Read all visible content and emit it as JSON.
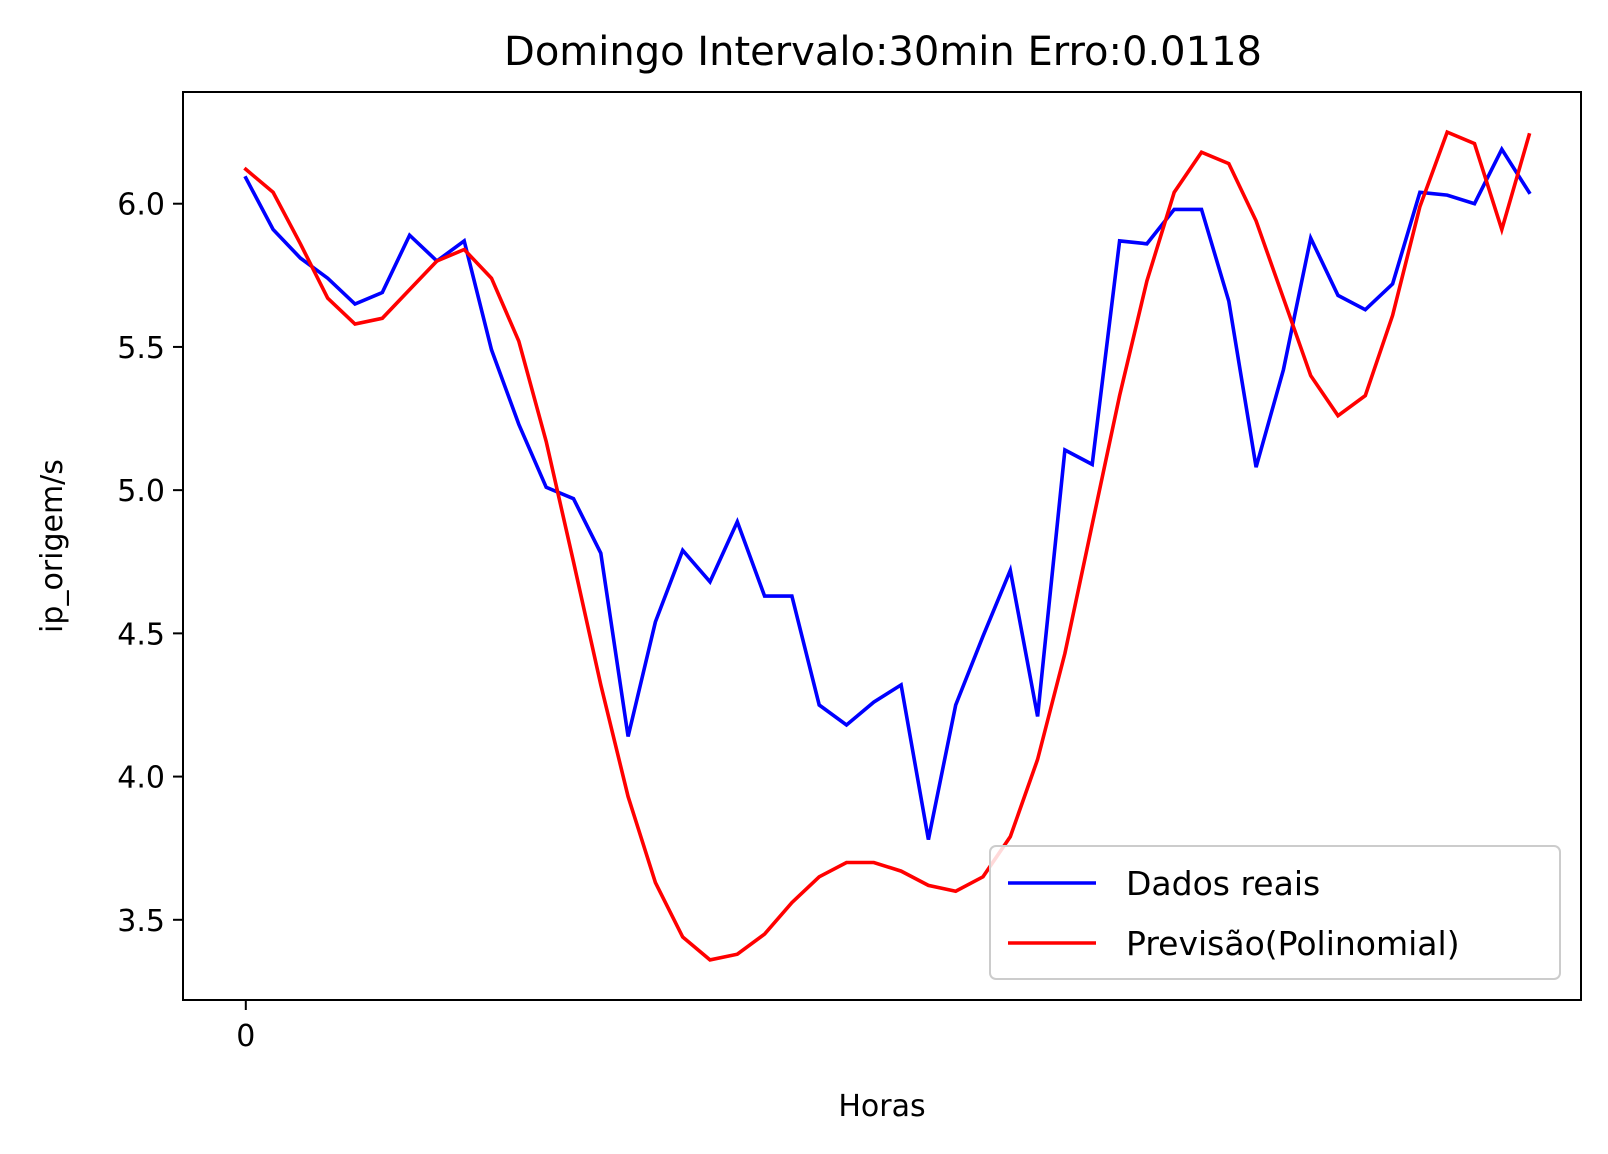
{
  "chart_data": {
    "type": "line",
    "title": "Domingo Intervalo:30min Erro:0.0118",
    "xlabel": "Horas",
    "ylabel": "ip_origem/s",
    "xlim": [
      -2.3,
      48.9
    ],
    "ylim": [
      3.22,
      6.39
    ],
    "xticks": [
      {
        "value": 0,
        "label": "0"
      }
    ],
    "yticks": [
      {
        "value": 3.5,
        "label": "3.5"
      },
      {
        "value": 4.0,
        "label": "4.0"
      },
      {
        "value": 4.5,
        "label": "4.5"
      },
      {
        "value": 5.0,
        "label": "5.0"
      },
      {
        "value": 5.5,
        "label": "5.5"
      },
      {
        "value": 6.0,
        "label": "6.0"
      }
    ],
    "grid": false,
    "legend_position": "lower-right",
    "x": [
      0,
      1,
      2,
      3,
      4,
      5,
      6,
      7,
      8,
      9,
      10,
      11,
      12,
      13,
      14,
      15,
      16,
      17,
      18,
      19,
      20,
      21,
      22,
      23,
      24,
      25,
      26,
      27,
      28,
      29,
      30,
      31,
      32,
      33,
      34,
      35,
      36,
      37,
      38,
      39,
      40,
      41,
      42,
      43,
      44,
      45,
      46,
      47
    ],
    "series": [
      {
        "name": "Dados reais",
        "color": "#0000ff",
        "values": [
          6.09,
          5.91,
          5.81,
          5.74,
          5.65,
          5.69,
          5.89,
          5.8,
          5.87,
          5.49,
          5.23,
          5.01,
          4.97,
          4.78,
          4.14,
          4.54,
          4.79,
          4.68,
          4.89,
          4.63,
          4.63,
          4.25,
          4.18,
          4.26,
          4.32,
          3.78,
          4.25,
          4.49,
          4.72,
          4.21,
          5.14,
          5.09,
          5.87,
          5.86,
          5.98,
          5.98,
          5.66,
          5.08,
          5.42,
          5.88,
          5.68,
          5.63,
          5.72,
          6.04,
          6.03,
          6.0,
          6.19,
          6.04
        ]
      },
      {
        "name": "Previsão(Polinomial)",
        "color": "#ff0000",
        "values": [
          6.12,
          6.04,
          5.86,
          5.67,
          5.58,
          5.6,
          5.7,
          5.8,
          5.84,
          5.74,
          5.52,
          5.17,
          4.75,
          4.32,
          3.93,
          3.63,
          3.44,
          3.36,
          3.38,
          3.45,
          3.56,
          3.65,
          3.7,
          3.7,
          3.67,
          3.62,
          3.6,
          3.65,
          3.79,
          4.06,
          4.43,
          4.88,
          5.33,
          5.73,
          6.04,
          6.18,
          6.14,
          5.94,
          5.67,
          5.4,
          5.26,
          5.33,
          5.61,
          5.99,
          6.25,
          6.21,
          5.91,
          6.24
        ]
      }
    ]
  }
}
